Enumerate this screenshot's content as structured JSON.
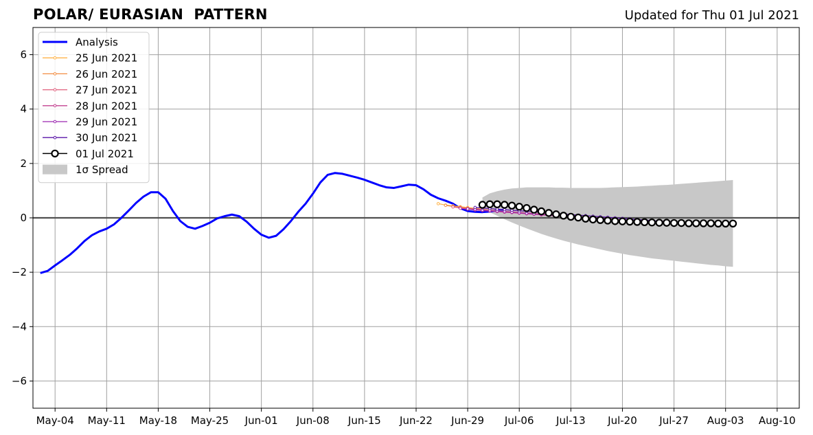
{
  "header": {
    "title": "POLAR/ EURASIAN  PATTERN",
    "subtitle": "Updated for Thu 01 Jul 2021"
  },
  "chart_data": {
    "type": "line",
    "title": "POLAR/ EURASIAN  PATTERN",
    "subtitle": "Updated for Thu 01 Jul 2021",
    "xlabel": "",
    "ylabel": "",
    "x_start": "2021-05-01",
    "xlim": [
      "2021-05-01",
      "2021-08-13"
    ],
    "ylim": [
      -7,
      7
    ],
    "x_ticks": [
      "May-04",
      "May-11",
      "May-18",
      "May-25",
      "Jun-01",
      "Jun-08",
      "Jun-15",
      "Jun-22",
      "Jun-29",
      "Jul-06",
      "Jul-13",
      "Jul-20",
      "Jul-27",
      "Aug-03",
      "Aug-10"
    ],
    "y_ticks": [
      -6,
      -4,
      -2,
      0,
      2,
      4,
      6
    ],
    "grid": true,
    "legend_position": "top-left",
    "series": [
      {
        "name": "Analysis",
        "kind": "analysis",
        "color": "#0000ff",
        "start": "2021-05-02",
        "values": [
          -2.03,
          -1.95,
          -1.75,
          -1.56,
          -1.36,
          -1.12,
          -0.85,
          -0.64,
          -0.5,
          -0.4,
          -0.24,
          0.0,
          0.27,
          0.55,
          0.78,
          0.94,
          0.94,
          0.7,
          0.25,
          -0.12,
          -0.33,
          -0.4,
          -0.3,
          -0.18,
          -0.02,
          0.06,
          0.12,
          0.06,
          -0.14,
          -0.4,
          -0.62,
          -0.73,
          -0.66,
          -0.42,
          -0.12,
          0.22,
          0.52,
          0.89,
          1.3,
          1.58,
          1.65,
          1.62,
          1.55,
          1.48,
          1.4,
          1.3,
          1.2,
          1.12,
          1.1,
          1.16,
          1.22,
          1.2,
          1.05,
          0.85,
          0.72,
          0.63,
          0.52,
          0.35,
          0.25,
          0.22,
          0.21,
          0.23,
          0.27,
          0.3
        ]
      },
      {
        "name": "25 Jun 2021",
        "kind": "forecast",
        "color": "#ffb347",
        "start": "2021-06-25",
        "values": [
          0.52,
          0.47,
          0.44,
          0.41,
          0.38,
          0.35,
          0.32,
          0.29,
          0.26,
          0.24,
          0.22,
          0.2,
          0.18,
          0.16,
          0.14,
          0.12,
          0.1,
          0.08,
          0.06,
          0.04,
          0.02,
          0.0,
          -0.02,
          -0.04,
          -0.06,
          -0.08,
          -0.1,
          -0.12,
          -0.14,
          -0.15,
          -0.16,
          -0.17,
          -0.18,
          -0.18,
          -0.19
        ]
      },
      {
        "name": "26 Jun 2021",
        "kind": "forecast",
        "color": "#f28c41",
        "start": "2021-06-26",
        "values": [
          0.46,
          0.42,
          0.39,
          0.36,
          0.33,
          0.3,
          0.27,
          0.25,
          0.23,
          0.21,
          0.19,
          0.17,
          0.15,
          0.13,
          0.11,
          0.09,
          0.07,
          0.05,
          0.03,
          0.01,
          -0.01,
          -0.03,
          -0.05,
          -0.07,
          -0.09,
          -0.11,
          -0.13,
          -0.14,
          -0.15,
          -0.16,
          -0.17,
          -0.18,
          -0.18,
          -0.19,
          -0.19
        ]
      },
      {
        "name": "27 Jun 2021",
        "kind": "forecast",
        "color": "#e0607e",
        "start": "2021-06-27",
        "values": [
          0.4,
          0.37,
          0.34,
          0.31,
          0.28,
          0.26,
          0.24,
          0.22,
          0.2,
          0.18,
          0.16,
          0.14,
          0.12,
          0.1,
          0.08,
          0.06,
          0.04,
          0.02,
          0.0,
          -0.02,
          -0.04,
          -0.06,
          -0.08,
          -0.1,
          -0.12,
          -0.13,
          -0.14,
          -0.15,
          -0.16,
          -0.17,
          -0.18,
          -0.18,
          -0.19,
          -0.19,
          -0.2
        ]
      },
      {
        "name": "28 Jun 2021",
        "kind": "forecast",
        "color": "#c2408f",
        "start": "2021-06-28",
        "values": [
          0.35,
          0.32,
          0.29,
          0.27,
          0.25,
          0.23,
          0.21,
          0.19,
          0.17,
          0.15,
          0.13,
          0.11,
          0.09,
          0.07,
          0.05,
          0.03,
          0.01,
          -0.01,
          -0.03,
          -0.05,
          -0.07,
          -0.09,
          -0.11,
          -0.12,
          -0.13,
          -0.14,
          -0.15,
          -0.16,
          -0.17,
          -0.18,
          -0.18,
          -0.19,
          -0.19,
          -0.2,
          -0.2
        ]
      },
      {
        "name": "29 Jun 2021",
        "kind": "forecast",
        "color": "#9a24b0",
        "start": "2021-06-29",
        "values": [
          0.33,
          0.31,
          0.29,
          0.27,
          0.25,
          0.23,
          0.21,
          0.19,
          0.17,
          0.15,
          0.13,
          0.11,
          0.09,
          0.07,
          0.05,
          0.03,
          0.01,
          -0.01,
          -0.03,
          -0.05,
          -0.07,
          -0.09,
          -0.1,
          -0.11,
          -0.12,
          -0.13,
          -0.14,
          -0.15,
          -0.16,
          -0.17,
          -0.18,
          -0.19,
          -0.19,
          -0.2,
          -0.2
        ]
      },
      {
        "name": "30 Jun 2021",
        "kind": "forecast",
        "color": "#5a14a8",
        "start": "2021-06-30",
        "values": [
          0.38,
          0.36,
          0.34,
          0.32,
          0.3,
          0.28,
          0.26,
          0.24,
          0.22,
          0.2,
          0.18,
          0.16,
          0.14,
          0.12,
          0.1,
          0.08,
          0.06,
          0.04,
          0.02,
          0.0,
          -0.02,
          -0.04,
          -0.06,
          -0.08,
          -0.1,
          -0.12,
          -0.14,
          -0.15,
          -0.16,
          -0.17,
          -0.18,
          -0.19,
          -0.19,
          -0.2,
          -0.2
        ]
      },
      {
        "name": "01 Jul 2021",
        "kind": "current",
        "color": "#000000",
        "start": "2021-07-01",
        "values": [
          0.48,
          0.5,
          0.5,
          0.48,
          0.45,
          0.41,
          0.36,
          0.3,
          0.24,
          0.18,
          0.13,
          0.08,
          0.04,
          0.01,
          -0.03,
          -0.06,
          -0.08,
          -0.1,
          -0.12,
          -0.13,
          -0.14,
          -0.15,
          -0.16,
          -0.17,
          -0.18,
          -0.18,
          -0.19,
          -0.19,
          -0.2,
          -0.2,
          -0.2,
          -0.2,
          -0.21,
          -0.21,
          -0.21
        ]
      }
    ],
    "spread": {
      "name": "1σ Spread",
      "color": "#c8c8c8",
      "start": "2021-07-01",
      "upper": [
        0.75,
        0.9,
        0.98,
        1.04,
        1.08,
        1.1,
        1.12,
        1.12,
        1.12,
        1.12,
        1.11,
        1.11,
        1.1,
        1.1,
        1.1,
        1.1,
        1.1,
        1.11,
        1.12,
        1.13,
        1.14,
        1.15,
        1.17,
        1.18,
        1.2,
        1.21,
        1.23,
        1.25,
        1.27,
        1.29,
        1.31,
        1.33,
        1.35,
        1.37,
        1.39
      ],
      "lower": [
        0.3,
        0.2,
        0.08,
        -0.05,
        -0.17,
        -0.28,
        -0.39,
        -0.49,
        -0.59,
        -0.68,
        -0.76,
        -0.84,
        -0.91,
        -0.98,
        -1.04,
        -1.1,
        -1.16,
        -1.22,
        -1.27,
        -1.32,
        -1.37,
        -1.41,
        -1.45,
        -1.49,
        -1.52,
        -1.55,
        -1.58,
        -1.61,
        -1.64,
        -1.67,
        -1.7,
        -1.73,
        -1.75,
        -1.78,
        -1.8
      ]
    }
  }
}
